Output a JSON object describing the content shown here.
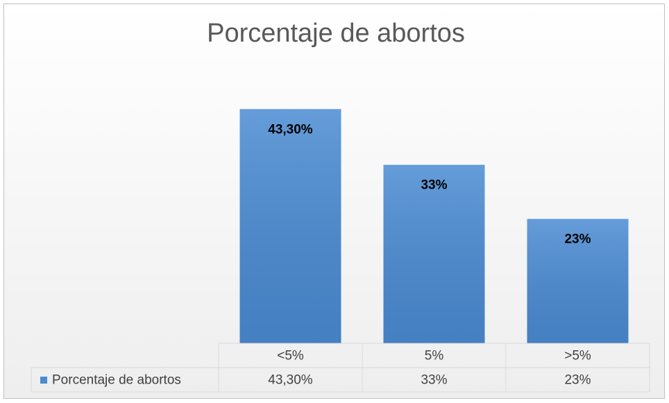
{
  "chart_data": {
    "type": "bar",
    "title": "Porcentaje de abortos",
    "categories": [
      "<5%",
      "5%",
      ">5%"
    ],
    "series": [
      {
        "name": "Porcentaje de abortos",
        "color": "#4a8bd3",
        "values": [
          43.3,
          33,
          23
        ],
        "value_labels": [
          "43,30%",
          "33%",
          "23%"
        ]
      }
    ],
    "data_table": true
  }
}
